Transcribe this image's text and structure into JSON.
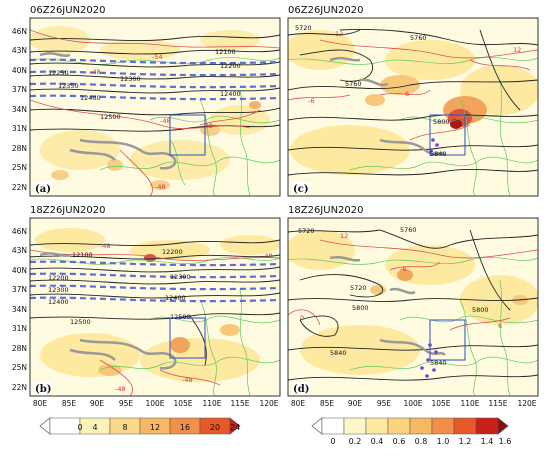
{
  "panels": [
    {
      "id": "a",
      "title": "06Z26JUN2020",
      "label": "(a)",
      "yticks": [
        "46N",
        "43N",
        "40N",
        "37N",
        "34N",
        "31N",
        "28N",
        "25N",
        "22N"
      ],
      "black_labels": [
        "12100",
        "12200",
        "12300",
        "12400",
        "12500",
        "12250",
        "12350",
        "12400"
      ],
      "red_labels": [
        "-54",
        "-48",
        "-48",
        "-48",
        "-48",
        "-48"
      ]
    },
    {
      "id": "c",
      "title": "06Z26JUN2020",
      "label": "(c)",
      "black_labels": [
        "5720",
        "5760",
        "5760",
        "5800",
        "5840"
      ],
      "red_labels": [
        "12",
        "-6",
        "6",
        "12"
      ]
    },
    {
      "id": "b",
      "title": "18Z26JUN2020",
      "label": "(b)",
      "yticks": [
        "46N",
        "43N",
        "40N",
        "37N",
        "34N",
        "31N",
        "28N",
        "25N",
        "22N"
      ],
      "black_labels": [
        "12100",
        "12200",
        "12300",
        "12400",
        "12500",
        "12500",
        "12400",
        "12300",
        "12200"
      ],
      "red_labels": [
        "-48",
        "-48",
        "-48",
        "-48"
      ]
    },
    {
      "id": "d",
      "title": "18Z26JUN2020",
      "label": "(d)",
      "black_labels": [
        "5720",
        "5760",
        "5720",
        "5800",
        "5800",
        "5840",
        "5840"
      ],
      "red_labels": [
        "12",
        "-6",
        "0",
        "6"
      ]
    }
  ],
  "xticks": [
    "80E",
    "85E",
    "90E",
    "95E",
    "100E",
    "105E",
    "110E",
    "115E",
    "120E"
  ],
  "colorbar_left": {
    "labels": [
      "0",
      "4",
      "8",
      "12",
      "16",
      "20",
      "24"
    ]
  },
  "colorbar_right": {
    "labels": [
      "0",
      "0.2",
      "0.4",
      "0.6",
      "0.8",
      "1.0",
      "1.2",
      "1.4",
      "1.6"
    ]
  }
}
